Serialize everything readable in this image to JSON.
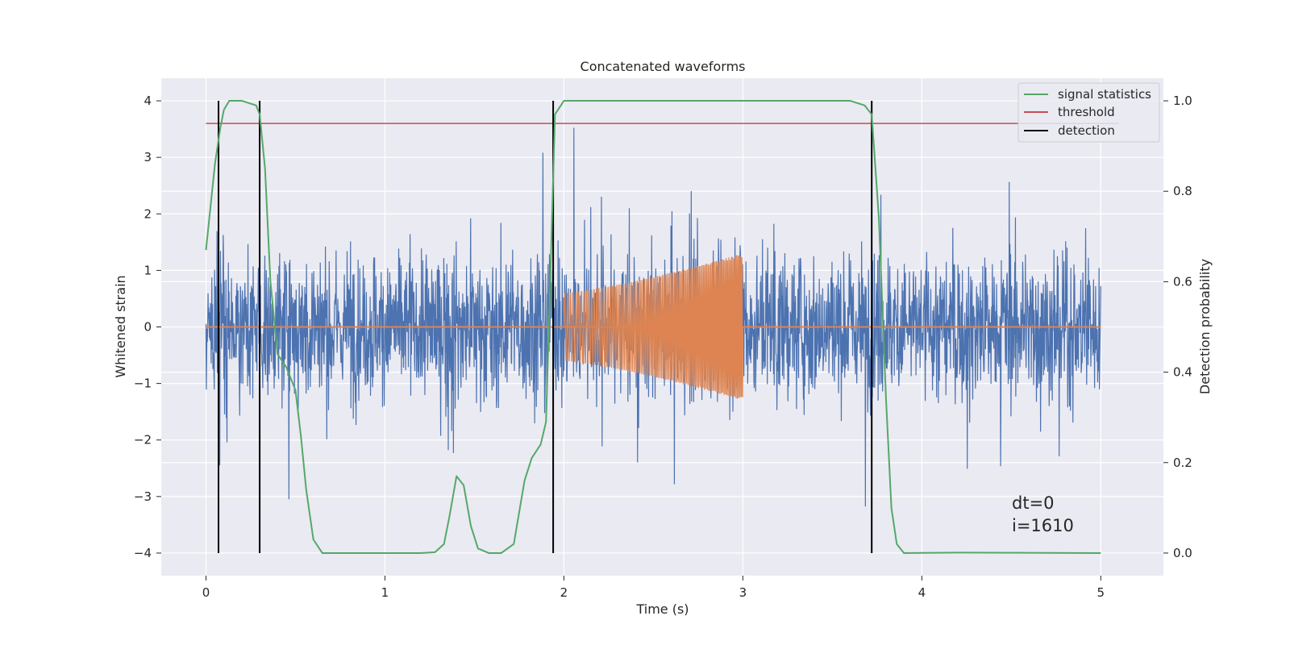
{
  "chart_data": {
    "type": "line",
    "title": "Concatenated waveforms",
    "xlabel": "Time (s)",
    "ylabel": "Whitened strain",
    "y2label": "Detection probability",
    "xlim": [
      -0.25,
      5.35
    ],
    "ylim": [
      -4.4,
      4.4
    ],
    "y2lim": [
      -0.05,
      1.05
    ],
    "x_ticks": [
      "0",
      "1",
      "2",
      "3",
      "4",
      "5"
    ],
    "y_ticks": [
      "−4",
      "−3",
      "−2",
      "−1",
      "0",
      "1",
      "2",
      "3",
      "4"
    ],
    "y2_ticks": [
      "0.0",
      "0.2",
      "0.4",
      "0.6",
      "0.8",
      "1.0"
    ],
    "grid": true,
    "legend_position": "top-right",
    "colors": {
      "strain": "#4c72b0",
      "waveform": "#dd8452",
      "signal_statistics": "#55a868",
      "threshold": "#c44e52",
      "detection": "#000000",
      "background": "#eaeaf2"
    },
    "series": [
      {
        "name": "",
        "axis": "left",
        "description_kind": "whitened strain noise",
        "x_range": [
          0,
          5
        ],
        "approx_range": [
          -4.0,
          4.0
        ]
      },
      {
        "name": "",
        "axis": "left",
        "description_kind": "injected waveform",
        "x": [
          0,
          2.0,
          2.0,
          3.0,
          3.0,
          5.0
        ],
        "envelope": [
          0,
          0,
          0.6,
          1.3,
          0,
          0
        ]
      },
      {
        "name": "signal statistics",
        "axis": "right",
        "x": [
          0,
          0.05,
          0.08,
          0.1,
          0.13,
          0.2,
          0.28,
          0.3,
          0.33,
          0.36,
          0.4,
          0.45,
          0.5,
          0.53,
          0.56,
          0.6,
          0.65,
          1.0,
          1.2,
          1.28,
          1.33,
          1.36,
          1.4,
          1.44,
          1.48,
          1.52,
          1.58,
          1.65,
          1.72,
          1.75,
          1.78,
          1.82,
          1.87,
          1.9,
          1.92,
          1.95,
          2.0,
          2.3,
          3.0,
          3.6,
          3.68,
          3.72,
          3.76,
          3.8,
          3.83,
          3.86,
          3.9,
          4.2,
          5.0
        ],
        "values": [
          0.67,
          0.86,
          0.94,
          0.98,
          1.0,
          1.0,
          0.99,
          0.97,
          0.85,
          0.6,
          0.44,
          0.41,
          0.36,
          0.26,
          0.14,
          0.03,
          0.0,
          0.0,
          0.0,
          0.002,
          0.02,
          0.08,
          0.17,
          0.15,
          0.06,
          0.01,
          0.0,
          0.0,
          0.02,
          0.09,
          0.16,
          0.21,
          0.24,
          0.29,
          0.55,
          0.97,
          1.0,
          1.0,
          1.0,
          1.0,
          0.99,
          0.97,
          0.74,
          0.34,
          0.1,
          0.02,
          0.0,
          0.001,
          0.0
        ]
      },
      {
        "name": "threshold",
        "axis": "right",
        "x": [
          0,
          5.1
        ],
        "values": [
          0.95,
          0.95
        ]
      },
      {
        "name": "detection",
        "axis": "left",
        "x_positions": [
          0.07,
          0.3,
          1.94,
          3.72
        ],
        "y_range": [
          -4,
          4
        ]
      }
    ],
    "annotations": [
      "dt=0",
      "i=1610"
    ]
  }
}
